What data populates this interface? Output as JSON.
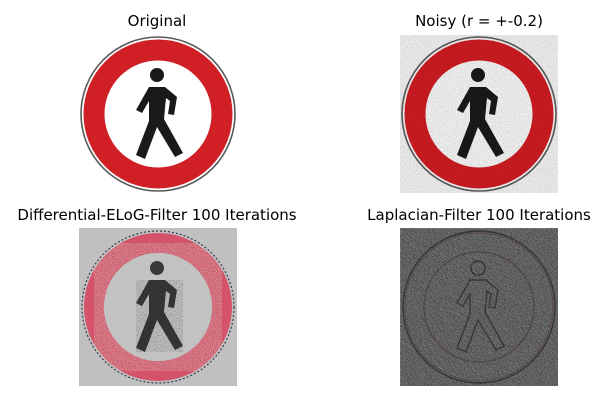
{
  "figure": {
    "panels": [
      {
        "title": "Original",
        "image": "no-pedestrians-road-sign"
      },
      {
        "title": "Noisy (r = +-0.2)",
        "image": "no-pedestrians-road-sign-with-noise"
      },
      {
        "title": "Differential-ELoG-Filter 100 Iterations",
        "image": "no-pedestrians-road-sign-elog-filtered"
      },
      {
        "title": "Laplacian-Filter 100 Iterations",
        "image": "no-pedestrians-road-sign-laplacian-filtered"
      }
    ]
  },
  "colors": {
    "sign_red": "#d11f26",
    "sign_black": "#1a1a1a",
    "ring_outline": "#5a5a5a",
    "elog_background": "#c0c0c0"
  }
}
